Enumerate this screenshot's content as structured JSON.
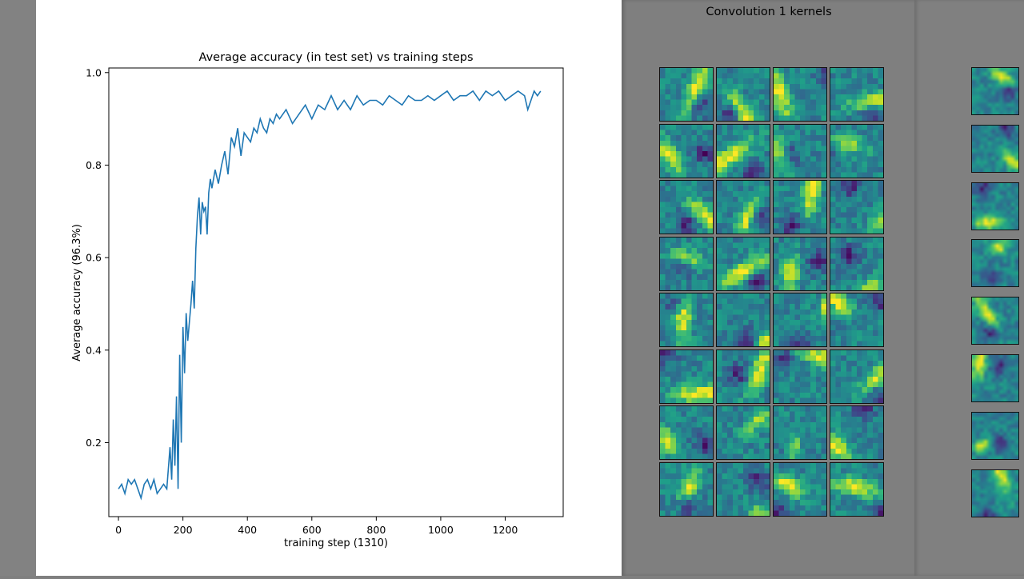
{
  "chart_data": {
    "type": "line",
    "title": "Average accuracy (in test set) vs training steps",
    "xlabel": "training step (1310)",
    "ylabel": "Average accuracy (96.3%)",
    "xlim": [
      -30,
      1380
    ],
    "ylim": [
      0.04,
      1.01
    ],
    "xticks": [
      0,
      200,
      400,
      600,
      800,
      1000,
      1200
    ],
    "yticks": [
      0.2,
      0.4,
      0.6,
      0.8,
      1.0
    ],
    "xtick_labels": [
      "0",
      "200",
      "400",
      "600",
      "800",
      "1000",
      "1200"
    ],
    "ytick_labels": [
      "0.2",
      "0.4",
      "0.6",
      "0.8",
      "1.0"
    ],
    "line_color": "#1f77b4",
    "series": [
      {
        "x": [
          0,
          10,
          20,
          30,
          40,
          50,
          60,
          70,
          80,
          90,
          100,
          110,
          120,
          130,
          140,
          150,
          160,
          165,
          170,
          175,
          180,
          185,
          190,
          195,
          200,
          205,
          210,
          215,
          220,
          225,
          230,
          235,
          240,
          245,
          250,
          255,
          260,
          265,
          270,
          275,
          280,
          285,
          290,
          300,
          310,
          320,
          330,
          340,
          350,
          360,
          370,
          380,
          390,
          400,
          410,
          420,
          430,
          440,
          450,
          460,
          470,
          480,
          490,
          500,
          520,
          540,
          560,
          580,
          600,
          620,
          640,
          660,
          680,
          700,
          720,
          740,
          760,
          780,
          800,
          820,
          840,
          860,
          880,
          900,
          920,
          940,
          960,
          980,
          1000,
          1020,
          1040,
          1060,
          1080,
          1100,
          1120,
          1140,
          1160,
          1180,
          1200,
          1220,
          1240,
          1260,
          1270,
          1280,
          1290,
          1300,
          1310
        ],
        "y": [
          0.1,
          0.11,
          0.09,
          0.12,
          0.11,
          0.12,
          0.1,
          0.08,
          0.11,
          0.12,
          0.1,
          0.12,
          0.09,
          0.1,
          0.11,
          0.1,
          0.19,
          0.12,
          0.25,
          0.15,
          0.3,
          0.1,
          0.39,
          0.2,
          0.45,
          0.35,
          0.48,
          0.42,
          0.46,
          0.5,
          0.55,
          0.49,
          0.62,
          0.69,
          0.73,
          0.65,
          0.72,
          0.7,
          0.71,
          0.65,
          0.74,
          0.77,
          0.75,
          0.79,
          0.76,
          0.8,
          0.83,
          0.78,
          0.86,
          0.84,
          0.88,
          0.82,
          0.87,
          0.86,
          0.85,
          0.88,
          0.87,
          0.9,
          0.88,
          0.87,
          0.9,
          0.89,
          0.91,
          0.9,
          0.92,
          0.89,
          0.91,
          0.93,
          0.9,
          0.93,
          0.92,
          0.95,
          0.92,
          0.94,
          0.92,
          0.95,
          0.93,
          0.94,
          0.94,
          0.93,
          0.95,
          0.94,
          0.93,
          0.95,
          0.94,
          0.94,
          0.95,
          0.94,
          0.95,
          0.96,
          0.94,
          0.95,
          0.95,
          0.96,
          0.94,
          0.96,
          0.95,
          0.96,
          0.94,
          0.95,
          0.96,
          0.95,
          0.92,
          0.94,
          0.96,
          0.95,
          0.96
        ]
      }
    ]
  },
  "kernels_panel": {
    "title": "Convolution 1 kernels",
    "rows": 8,
    "cols": 4,
    "right_rows": 8
  }
}
